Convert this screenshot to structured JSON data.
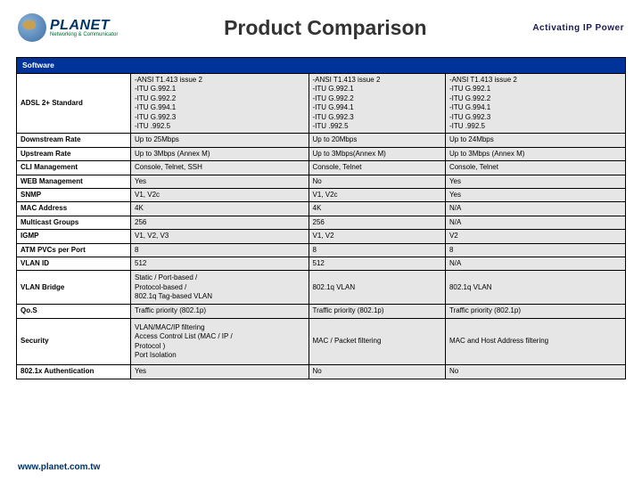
{
  "header": {
    "brand": "PLANET",
    "brand_sub": "Networking & Communicator",
    "title": "Product Comparison",
    "tagline": "Activating IP Power"
  },
  "section": "Software",
  "columns_count": 3,
  "rows": [
    {
      "label": "ADSL 2+ Standard",
      "cells": [
        "-ANSI T1.413 issue 2\n-ITU G.992.1\n-ITU G.992.2\n-ITU G.994.1\n-ITU G.992.3\n-ITU .992.5",
        "-ANSI T1.413 issue 2\n-ITU G.992.1\n-ITU G.992.2\n-ITU G.994.1\n-ITU G.992.3\n-ITU .992.5",
        "-ANSI T1.413 issue 2\n-ITU G.992.1\n-ITU G.992.2\n-ITU G.994.1\n-ITU G.992.3\n-ITU .992.5"
      ],
      "multiline": true
    },
    {
      "label": "Downstream Rate",
      "cells": [
        "Up to 25Mbps",
        "Up to 20Mbps",
        "Up to 24Mbps"
      ]
    },
    {
      "label": "Upstream Rate",
      "cells": [
        "Up to 3Mbps (Annex M)",
        "Up to 3Mbps(Annex M)",
        "Up to 3Mbps (Annex M)"
      ]
    },
    {
      "label": "CLI Management",
      "cells": [
        "Console, Telnet, SSH",
        "Console, Telnet",
        "Console, Telnet"
      ]
    },
    {
      "label": "WEB Management",
      "cells": [
        "Yes",
        "No",
        "Yes"
      ]
    },
    {
      "label": "SNMP",
      "cells": [
        "V1, V2c",
        "V1, V2c",
        "Yes"
      ]
    },
    {
      "label": "MAC Address",
      "cells": [
        "4K",
        "4K",
        "N/A"
      ]
    },
    {
      "label": "Multicast Groups",
      "cells": [
        "256",
        "256",
        "N/A"
      ]
    },
    {
      "label": "IGMP",
      "cells": [
        "V1, V2, V3",
        "V1, V2",
        "V2"
      ]
    },
    {
      "label": "ATM PVCs per Port",
      "cells": [
        "8",
        "8",
        "8"
      ]
    },
    {
      "label": "VLAN ID",
      "cells": [
        "512",
        "512",
        "N/A"
      ]
    },
    {
      "label": "VLAN Bridge",
      "cells": [
        "Static / Port-based /\nProtocol-based /\n802.1q Tag-based VLAN",
        "802.1q VLAN",
        "802.1q VLAN"
      ],
      "multiline": true,
      "class": "tall"
    },
    {
      "label": "Qo.S",
      "cells": [
        "Traffic priority (802.1p)",
        "Traffic priority (802.1p)",
        "Traffic priority (802.1p)"
      ]
    },
    {
      "label": "Security",
      "cells": [
        "VLAN/MAC/IP filtering\nAccess Control List (MAC / IP /\nProtocol )\nPort Isolation",
        "MAC / Packet filtering",
        "MAC and Host Address filtering"
      ],
      "multiline": true,
      "class": "xtall"
    },
    {
      "label": "802.1x Authentication",
      "cells": [
        "Yes",
        "No",
        "No"
      ]
    }
  ],
  "footer": "www.planet.com.tw",
  "colors": {
    "header_bg": "#003399",
    "header_fg": "#ffffff",
    "data_bg": "#e6e6e6",
    "border": "#000000",
    "title_color": "#333333",
    "brand_color": "#003366"
  }
}
